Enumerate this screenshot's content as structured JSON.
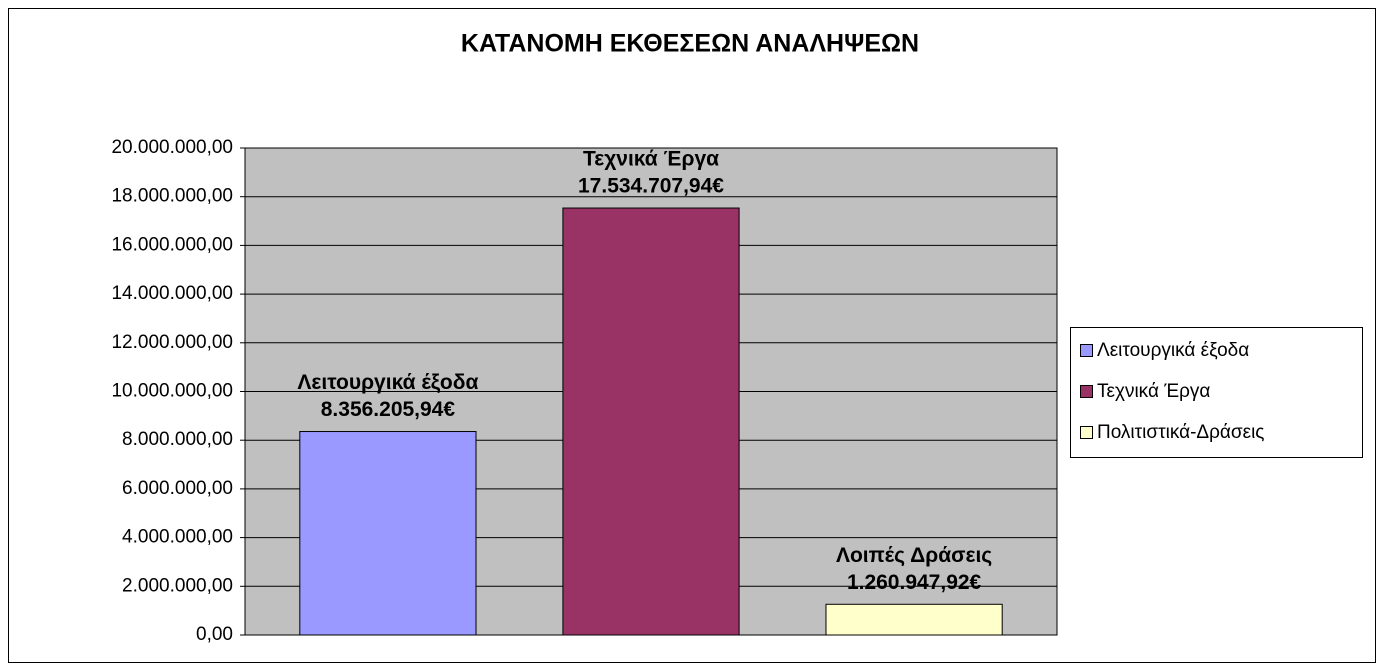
{
  "chart_data": {
    "type": "bar",
    "title": "ΚΑΤΑΝΟΜΗ ΕΚΘΕΣΕΩΝ ΑΝΑΛΗΨΕΩΝ",
    "series": [
      {
        "name": "Λειτουργικά έξοδα",
        "label": "Λειτουργικά έξοδα",
        "color": "#9999ff",
        "values": [
          8356205.94
        ],
        "value_labels": [
          "8.356.205,94€"
        ]
      },
      {
        "name": "Τεχνικά Έργα",
        "label": "Τεχνικά Έργα",
        "color": "#993366",
        "values": [
          17534707.94
        ],
        "value_labels": [
          "17.534.707,94€"
        ]
      },
      {
        "name": "Πολιτιστικά-Δράσεις",
        "label": "Λοιπές Δράσεις",
        "color": "#ffffcc",
        "values": [
          1260947.92
        ],
        "value_labels": [
          "1.260.947,92€"
        ]
      }
    ],
    "ylim": [
      0,
      20000000
    ],
    "yticks": [
      {
        "value": 0,
        "label": "0,00"
      },
      {
        "value": 2000000,
        "label": "2.000.000,00"
      },
      {
        "value": 4000000,
        "label": "4.000.000,00"
      },
      {
        "value": 6000000,
        "label": "6.000.000,00"
      },
      {
        "value": 8000000,
        "label": "8.000.000,00"
      },
      {
        "value": 10000000,
        "label": "10.000.000,00"
      },
      {
        "value": 12000000,
        "label": "12.000.000,00"
      },
      {
        "value": 14000000,
        "label": "14.000.000,00"
      },
      {
        "value": 16000000,
        "label": "16.000.000,00"
      },
      {
        "value": 18000000,
        "label": "18.000.000,00"
      },
      {
        "value": 20000000,
        "label": "20.000.000,00"
      }
    ],
    "grid": true,
    "legend": "right"
  }
}
